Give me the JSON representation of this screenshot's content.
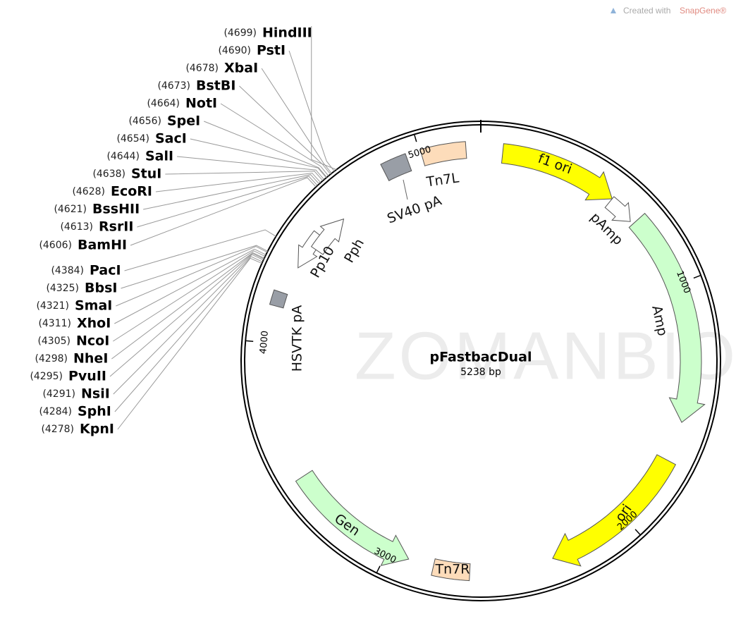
{
  "credit": {
    "prefix": "Created with",
    "brand": "SnapGene®"
  },
  "watermark": "ZOMANBIO",
  "plasmid": {
    "name": "pFastbacDual",
    "length": "5238 bp"
  },
  "ticks": [
    1000,
    2000,
    3000,
    4000,
    5000
  ],
  "features": [
    {
      "label": "f1 ori"
    },
    {
      "label": "pAmp"
    },
    {
      "label": "Amp"
    },
    {
      "label": "ori"
    },
    {
      "label": "Tn7R"
    },
    {
      "label": "Gen"
    },
    {
      "label": "HSVTK pA"
    },
    {
      "label": "Pp10"
    },
    {
      "label": "Pph"
    },
    {
      "label": "SV40 pA"
    },
    {
      "label": "Tn7L"
    }
  ],
  "enzymes": [
    {
      "position": "(4699)",
      "name": "HindIII"
    },
    {
      "position": "(4690)",
      "name": "PstI"
    },
    {
      "position": "(4678)",
      "name": "XbaI"
    },
    {
      "position": "(4673)",
      "name": "BstBI"
    },
    {
      "position": "(4664)",
      "name": "NotI"
    },
    {
      "position": "(4656)",
      "name": "SpeI"
    },
    {
      "position": "(4654)",
      "name": "SacI"
    },
    {
      "position": "(4644)",
      "name": "SalI"
    },
    {
      "position": "(4638)",
      "name": "StuI"
    },
    {
      "position": "(4628)",
      "name": "EcoRI"
    },
    {
      "position": "(4621)",
      "name": "BssHII"
    },
    {
      "position": "(4613)",
      "name": "RsrII"
    },
    {
      "position": "(4606)",
      "name": "BamHI"
    },
    {
      "position": "(4384)",
      "name": "PacI"
    },
    {
      "position": "(4325)",
      "name": "BbsI"
    },
    {
      "position": "(4321)",
      "name": "SmaI"
    },
    {
      "position": "(4311)",
      "name": "XhoI"
    },
    {
      "position": "(4305)",
      "name": "NcoI"
    },
    {
      "position": "(4298)",
      "name": "NheI"
    },
    {
      "position": "(4295)",
      "name": "PvuII"
    },
    {
      "position": "(4291)",
      "name": "NsiI"
    },
    {
      "position": "(4284)",
      "name": "SphI"
    },
    {
      "position": "(4278)",
      "name": "KpnI"
    }
  ]
}
